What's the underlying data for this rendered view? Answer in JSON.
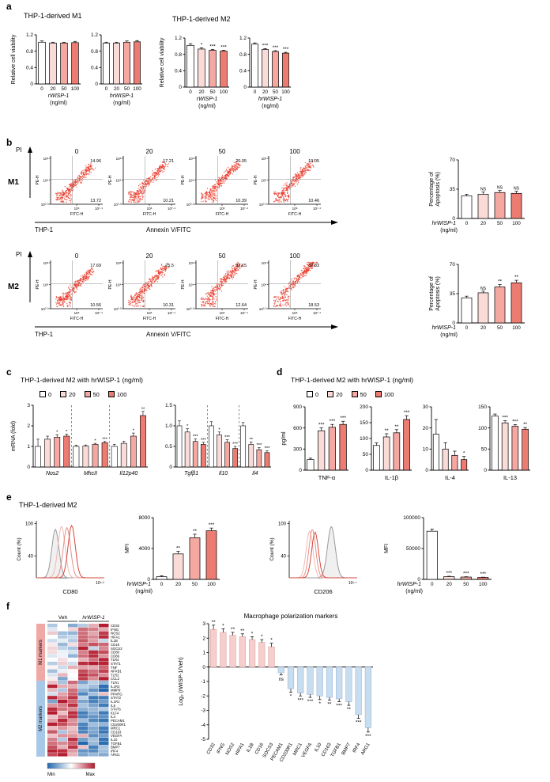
{
  "colors": {
    "doses": [
      "#ffffff",
      "#fadbd8",
      "#f5a8a2",
      "#ec7b72"
    ],
    "dose_border": "#000000",
    "flow_dot": "#e8392b",
    "pos_bar": "#f6cfcd",
    "neg_bar": "#c9ddf0",
    "m1_side": "#f0a8a6",
    "m2_side": "#a8c8e8",
    "heat_pos": "#b2182b",
    "heat_neg": "#2166ac"
  },
  "legend_doses": [
    "0",
    "20",
    "50",
    "100"
  ],
  "flow_axes": {
    "yname": "PE-H",
    "xname": "FITC-H",
    "yticks": [
      "10⁶",
      "10⁴",
      "10⁰·³"
    ],
    "xticks": [
      "10⁶",
      "10⁷·⁴"
    ]
  },
  "panels": {
    "a": {
      "label": "a",
      "m1_title": "THP-1-derived M1",
      "m2_title": "THP-1-derived M2"
    },
    "b": {
      "label": "b",
      "pi": "PI",
      "m1": "M1",
      "m2": "M2",
      "thp1": "THP-1",
      "annexin": "Annexin V/FITC"
    },
    "c": {
      "label": "c",
      "title": "THP-1-derived M2 with hrWISP-1 (ng/ml)"
    },
    "d": {
      "label": "d",
      "title": "THP-1-derived M2 with hrWISP-1 (ng/ml)"
    },
    "e": {
      "label": "e",
      "title": "THP-1-derived M2"
    },
    "f": {
      "label": "f"
    }
  },
  "chart_data": [
    {
      "id": "a_m1_r",
      "type": "bar",
      "ylabel": "Relative cell viability",
      "ylim": [
        0,
        1.2
      ],
      "yticks": [
        0,
        0.4,
        0.8,
        1.2
      ],
      "ytick_labels": [
        "0",
        "0.4",
        "0.8",
        "1.2"
      ],
      "categories": [
        "0",
        "20",
        "50",
        "100"
      ],
      "values": [
        1.02,
        1.0,
        1.0,
        1.01
      ],
      "errors": [
        0.03,
        0.02,
        0.02,
        0.03
      ],
      "sig": [
        "",
        "",
        "",
        ""
      ],
      "xlabel": [
        "rWISP-1",
        "(ng/ml)"
      ]
    },
    {
      "id": "a_m1_hr",
      "type": "bar",
      "ylim": [
        0,
        1.2
      ],
      "yticks": [
        0,
        0.4,
        0.8,
        1.2
      ],
      "ytick_labels": [
        "0",
        "0.4",
        "0.8",
        "1.2"
      ],
      "categories": [
        "0",
        "20",
        "50",
        "100"
      ],
      "values": [
        1.0,
        1.0,
        1.02,
        1.03
      ],
      "errors": [
        0.02,
        0.02,
        0.03,
        0.03
      ],
      "sig": [
        "",
        "",
        "",
        ""
      ],
      "xlabel": [
        "hrWISP-1",
        "(ng/ml)"
      ]
    },
    {
      "id": "a_m2_r",
      "type": "bar",
      "ylabel": "Relative cell viability",
      "ylim": [
        0,
        1.2
      ],
      "yticks": [
        0,
        0.4,
        0.8,
        1.2
      ],
      "ytick_labels": [
        "0",
        "0.4",
        "0.8",
        "1.2"
      ],
      "categories": [
        "0",
        "20",
        "50",
        "100"
      ],
      "values": [
        1.02,
        0.93,
        0.9,
        0.88
      ],
      "errors": [
        0.04,
        0.03,
        0.02,
        0.02
      ],
      "sig": [
        "",
        "*",
        "***",
        "***"
      ],
      "xlabel": [
        "rWISP-1",
        "(ng/ml)"
      ]
    },
    {
      "id": "a_m2_hr",
      "type": "bar",
      "ylim": [
        0,
        1.2
      ],
      "yticks": [
        0,
        0.4,
        0.8,
        1.2
      ],
      "ytick_labels": [
        "0",
        "0.4",
        "0.8",
        "1.2"
      ],
      "categories": [
        "0",
        "20",
        "50",
        "100"
      ],
      "values": [
        1.05,
        0.92,
        0.87,
        0.83
      ],
      "errors": [
        0.03,
        0.02,
        0.02,
        0.02
      ],
      "sig": [
        "",
        "***",
        "***",
        "***"
      ],
      "xlabel": [
        "hrWISP-1",
        "(ng/ml)"
      ]
    },
    {
      "id": "b_m1_f0",
      "type": "flow",
      "title": "0",
      "upper": "14.96",
      "lower": "13.72",
      "seed": 11,
      "shift": 0
    },
    {
      "id": "b_m1_f20",
      "type": "flow",
      "title": "20",
      "upper": "17.21",
      "lower": "10.21",
      "seed": 12,
      "shift": 0.04
    },
    {
      "id": "b_m1_f50",
      "type": "flow",
      "title": "50",
      "upper": "20.05",
      "lower": "10.39",
      "seed": 13,
      "shift": 0.06
    },
    {
      "id": "b_m1_f100",
      "type": "flow",
      "title": "100",
      "upper": "19.05",
      "lower": "10.46",
      "seed": 14,
      "shift": 0.06
    },
    {
      "id": "b_m2_f0",
      "type": "flow",
      "title": "0",
      "upper": "17.69",
      "lower": "10.56",
      "seed": 21,
      "shift": 0.02
    },
    {
      "id": "b_m2_f20",
      "type": "flow",
      "title": "20",
      "upper": "25.5",
      "lower": "10.31",
      "seed": 22,
      "shift": 0.09
    },
    {
      "id": "b_m2_f50",
      "type": "flow",
      "title": "50",
      "upper": "32.15",
      "lower": "12.64",
      "seed": 23,
      "shift": 0.14
    },
    {
      "id": "b_m2_f100",
      "type": "flow",
      "title": "100",
      "upper": "32.83",
      "lower": "18.53",
      "seed": 24,
      "shift": 0.18
    },
    {
      "id": "b_m1_bar",
      "type": "bar",
      "ylabel2": [
        "Percentage of",
        "Apoptosis (%)"
      ],
      "ylim": [
        0,
        70
      ],
      "yticks": [
        0,
        35,
        70
      ],
      "ytick_labels": [
        "0",
        "35",
        "70"
      ],
      "categories": [
        "0",
        "20",
        "50",
        "100"
      ],
      "values": [
        27,
        29,
        31,
        30
      ],
      "errors": [
        2,
        2.5,
        2.5,
        2.5
      ],
      "sig": [
        "",
        "NS",
        "NS",
        "NS"
      ],
      "xlabel": [
        "hrWISP-1",
        "(ng/ml)"
      ],
      "xlabel_side": true
    },
    {
      "id": "b_m2_bar",
      "type": "bar",
      "ylabel2": [
        "Percentage of",
        "Apoptosis (%)"
      ],
      "ylim": [
        0,
        70
      ],
      "yticks": [
        0,
        35,
        70
      ],
      "ytick_labels": [
        "0",
        "35",
        "70"
      ],
      "categories": [
        "0",
        "20",
        "50",
        "100"
      ],
      "values": [
        30,
        36,
        43,
        48
      ],
      "errors": [
        2,
        2,
        3,
        3
      ],
      "sig": [
        "",
        "NS",
        "**",
        "**"
      ],
      "xlabel": [
        "hrWISP-1",
        "(ng/ml)"
      ],
      "xlabel_side": true
    },
    {
      "id": "c_left",
      "type": "genebar",
      "ylabel": "mRNA (fold)",
      "ylim": [
        0,
        3
      ],
      "yticks": [
        0,
        1,
        2,
        3
      ],
      "ytick_labels": [
        "0",
        "1",
        "2",
        "3"
      ],
      "groups": [
        {
          "gene": "Nos2",
          "values": [
            1.0,
            1.35,
            1.45,
            1.5
          ],
          "errors": [
            0.35,
            0.15,
            0.12,
            0.1
          ],
          "sig": [
            "",
            "",
            "*",
            "*"
          ]
        },
        {
          "gene": "MhcII",
          "values": [
            1.0,
            1.02,
            1.1,
            1.18
          ],
          "errors": [
            0.06,
            0.05,
            0.05,
            0.06
          ],
          "sig": [
            "",
            "",
            "*",
            "***"
          ]
        },
        {
          "gene": "Il12p40",
          "values": [
            1.0,
            1.15,
            1.5,
            2.5
          ],
          "errors": [
            0.1,
            0.1,
            0.15,
            0.2
          ],
          "sig": [
            "",
            "",
            "*",
            "**"
          ]
        }
      ]
    },
    {
      "id": "c_right",
      "type": "genebar",
      "ylim": [
        0,
        1.5
      ],
      "yticks": [
        0,
        0.5,
        1.0,
        1.5
      ],
      "ytick_labels": [
        "0",
        "0.5",
        "1.0",
        "1.5"
      ],
      "groups": [
        {
          "gene": "Tgfβ1",
          "values": [
            1.0,
            0.85,
            0.62,
            0.55
          ],
          "errors": [
            0.12,
            0.08,
            0.06,
            0.05
          ],
          "sig": [
            "",
            "*",
            "***",
            "***"
          ]
        },
        {
          "gene": "Il10",
          "values": [
            1.0,
            0.78,
            0.6,
            0.45
          ],
          "errors": [
            0.1,
            0.07,
            0.06,
            0.05
          ],
          "sig": [
            "",
            "*",
            "***",
            "***"
          ]
        },
        {
          "gene": "Il4",
          "values": [
            1.0,
            0.55,
            0.42,
            0.35
          ],
          "errors": [
            0.08,
            0.06,
            0.05,
            0.04
          ],
          "sig": [
            "",
            "**",
            "***",
            "***"
          ]
        }
      ]
    },
    {
      "id": "d_tnf",
      "type": "bar",
      "ylabel": "pg/ml",
      "ylim": [
        0,
        900
      ],
      "yticks": [
        0,
        300,
        600,
        900
      ],
      "ytick_labels": [
        "0",
        "300",
        "600",
        "900"
      ],
      "values": [
        150,
        560,
        610,
        650
      ],
      "errors": [
        20,
        40,
        40,
        45
      ],
      "sig": [
        "",
        "***",
        "***",
        "***"
      ],
      "name": "TNF-α"
    },
    {
      "id": "d_il1b",
      "type": "bar",
      "ylim": [
        0,
        200
      ],
      "yticks": [
        0,
        50,
        100,
        150,
        200
      ],
      "ytick_labels": [
        "0",
        "50",
        "100",
        "150",
        "200"
      ],
      "values": [
        78,
        105,
        118,
        160
      ],
      "errors": [
        8,
        10,
        10,
        12
      ],
      "sig": [
        "",
        "**",
        "**",
        "***"
      ],
      "name": "IL-1β"
    },
    {
      "id": "d_il4",
      "type": "bar",
      "ylim": [
        0,
        30
      ],
      "yticks": [
        0,
        10,
        20,
        30
      ],
      "ytick_labels": [
        "0",
        "10",
        "20",
        "30"
      ],
      "values": [
        17,
        10,
        7,
        5
      ],
      "errors": [
        7,
        3,
        2,
        1.5
      ],
      "sig": [
        "",
        "",
        "",
        "*"
      ],
      "name": "IL-4"
    },
    {
      "id": "d_il13",
      "type": "bar",
      "ylim": [
        0,
        150
      ],
      "yticks": [
        0,
        50,
        100,
        150
      ],
      "ytick_labels": [
        "0",
        "50",
        "100",
        "150"
      ],
      "values": [
        128,
        112,
        104,
        97
      ],
      "errors": [
        5,
        5,
        4,
        4
      ],
      "sig": [
        "",
        "***",
        "***",
        "**"
      ],
      "name": "IL-13"
    },
    {
      "id": "e_hist_cd80",
      "type": "hist",
      "ylabel": "Count (%)",
      "yticks": [
        {
          "f": 0.38,
          "label": "40"
        },
        {
          "f": 0.95,
          "label": "100"
        }
      ],
      "xlabel": "CD80",
      "xtick": "10⁵·²",
      "curves": [
        {
          "c": 0.28,
          "w": 0.075,
          "h": 0.85,
          "stroke": "#9a9a9a",
          "fill": "#e4e4e4"
        },
        {
          "c": 0.37,
          "w": 0.075,
          "h": 0.9,
          "stroke": "#f1b7b4",
          "fill": "none"
        },
        {
          "c": 0.45,
          "w": 0.075,
          "h": 0.88,
          "stroke": "#e98f88",
          "fill": "none"
        },
        {
          "c": 0.52,
          "w": 0.075,
          "h": 0.92,
          "stroke": "#d4493e",
          "fill": "none"
        }
      ]
    },
    {
      "id": "e_mfi_cd80",
      "type": "bar",
      "ylabel": "MFI",
      "ylim": [
        0,
        8000
      ],
      "yticks": [
        0,
        4000,
        8000
      ],
      "ytick_labels": [
        "0",
        "4000",
        "8000"
      ],
      "categories": [
        "0",
        "20",
        "50",
        "100"
      ],
      "values": [
        350,
        3300,
        5400,
        6300
      ],
      "errors": [
        120,
        350,
        450,
        350
      ],
      "sig": [
        "",
        "**",
        "**",
        "***"
      ],
      "xlabel": [
        "hrWISP-1",
        "(ng/ml)"
      ],
      "xlabel_side": true
    },
    {
      "id": "e_hist_cd206",
      "type": "hist",
      "ylabel": "Count (%)",
      "yticks": [
        {
          "f": 0.38,
          "label": "40"
        },
        {
          "f": 0.95,
          "label": "100"
        }
      ],
      "xlabel": "CD206",
      "xtick": "10⁶·⁷",
      "curves": [
        {
          "c": 0.62,
          "w": 0.08,
          "h": 0.9,
          "stroke": "#9a9a9a",
          "fill": "#e4e4e4"
        },
        {
          "c": 0.3,
          "w": 0.07,
          "h": 0.82,
          "stroke": "#f1b7b4",
          "fill": "none"
        },
        {
          "c": 0.34,
          "w": 0.07,
          "h": 0.85,
          "stroke": "#e98f88",
          "fill": "none"
        },
        {
          "c": 0.38,
          "w": 0.07,
          "h": 0.8,
          "stroke": "#d4493e",
          "fill": "none"
        }
      ]
    },
    {
      "id": "e_mfi_cd206",
      "type": "bar",
      "ylabel": "MFI",
      "ylim": [
        0,
        100000
      ],
      "yticks": [
        0,
        50000,
        100000
      ],
      "ytick_labels": [
        "0",
        "50000",
        "100000"
      ],
      "categories": [
        "0",
        "20",
        "50",
        "100"
      ],
      "values": [
        78000,
        4500,
        3800,
        3200
      ],
      "errors": [
        3500,
        600,
        500,
        450
      ],
      "sig": [
        "",
        "***",
        "***",
        "***"
      ],
      "xlabel": [
        "hrWISP-1",
        "(ng/ml)"
      ],
      "xlabel_side": true
    },
    {
      "id": "f_heat",
      "type": "heatmap",
      "col_groups": [
        "Veh",
        "hrWISP-1"
      ],
      "m1_label": "M1 markers",
      "m2_label": "M2 markers",
      "min_label": "Min",
      "max_label": "Max",
      "seed": 7,
      "m1_genes": [
        "CD32",
        "IFNG",
        "NOS2",
        "HIFA1",
        "IL1B",
        "CD16",
        "SOCS3",
        "CD80",
        "CD86",
        "TLR4",
        "STAT1",
        "TNF",
        "NFKB1",
        "TLR2",
        "CCL2"
      ],
      "m2_genes": [
        "TLR1",
        "IL1R2",
        "MMP9",
        "PPARG",
        "STAT3",
        "IL1R1",
        "IL6",
        "STAT6",
        "KLF4",
        "IL4",
        "PECAM1",
        "CD200R1",
        "MRC1",
        "CD163",
        "VEGFA",
        "IL10",
        "TGFB1",
        "BMP7",
        "IRF4",
        "ARG1"
      ]
    },
    {
      "id": "f_bar",
      "type": "logbar",
      "title": "Macrophage polarization markers",
      "ylabel": "Log₂ (rWISP-1/Veh)",
      "ylim": [
        -5,
        3
      ],
      "yticks": [
        3,
        2,
        1,
        0,
        -1,
        -2,
        -3,
        -4,
        -5
      ],
      "categories": [
        "CD32",
        "IFNG",
        "NOS2",
        "HIFA1",
        "IL1B",
        "CD16",
        "SOCS3",
        "PECAM1",
        "CD200R1",
        "MRC1",
        "VEGFA",
        "IL10",
        "CD163",
        "TGFB1",
        "BMP7",
        "IRF4",
        "ARG1"
      ],
      "values": [
        2.6,
        2.4,
        2.2,
        2.1,
        1.9,
        1.7,
        1.4,
        -0.4,
        -1.5,
        -1.8,
        -1.9,
        -2.0,
        -2.1,
        -2.2,
        -2.4,
        -3.3,
        -4.2
      ],
      "errors": [
        0.3,
        0.25,
        0.2,
        0.2,
        0.2,
        0.2,
        0.25,
        0.15,
        0.25,
        0.2,
        0.2,
        0.25,
        0.2,
        0.2,
        0.25,
        0.25,
        0.3
      ],
      "sig": [
        "**",
        "*",
        "**",
        "**",
        "*",
        "*",
        "*",
        "ns",
        "*",
        "***",
        "***",
        "*",
        "**",
        "***",
        "**",
        "***",
        "***"
      ]
    }
  ]
}
